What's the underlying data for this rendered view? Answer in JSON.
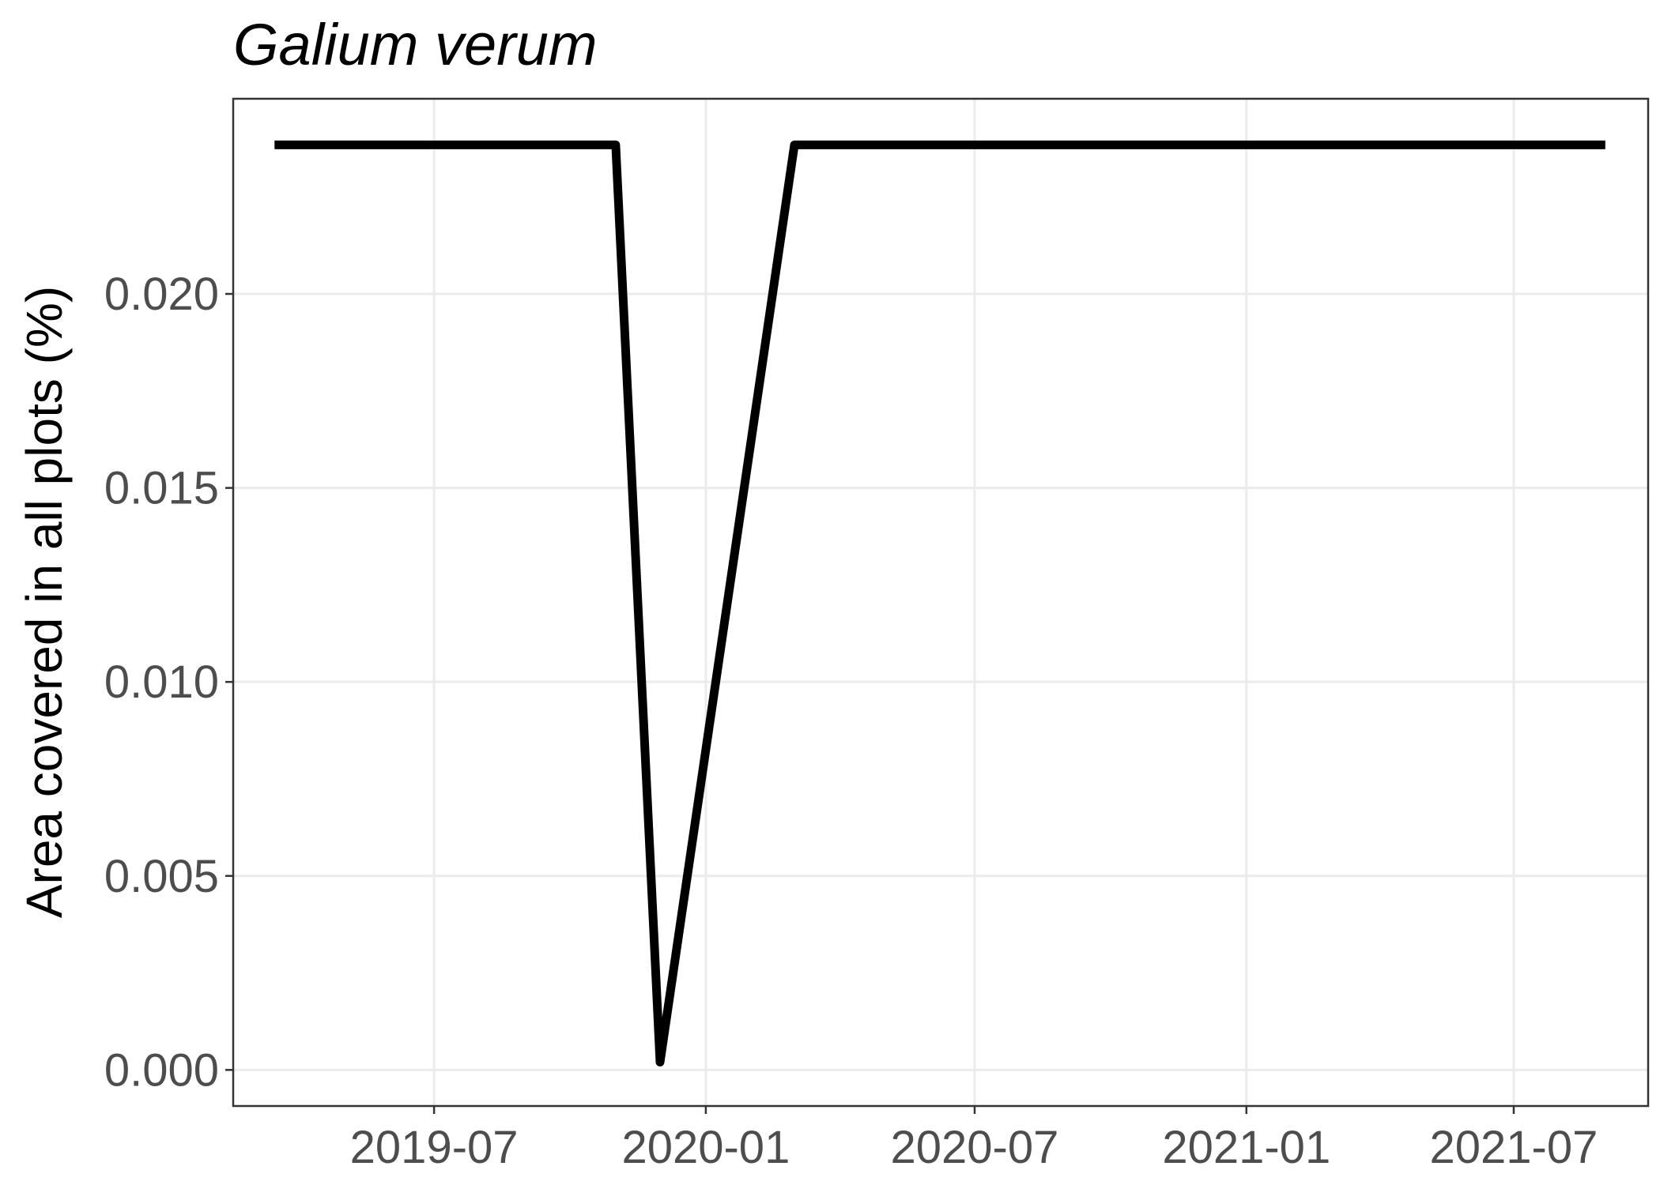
{
  "chart_data": {
    "type": "line",
    "title": "Galium verum",
    "xlabel": "",
    "ylabel": "Area covered in all plots (%)",
    "x_ticks": [
      "2019-07",
      "2020-01",
      "2020-07",
      "2021-01",
      "2021-07"
    ],
    "y_ticks": [
      "0.000",
      "0.005",
      "0.010",
      "0.015",
      "0.020"
    ],
    "ylim": [
      -0.00093,
      0.02503
    ],
    "xlim": [
      "2019-02-15",
      "2021-09-30"
    ],
    "grid": true,
    "legend": "none",
    "series": [
      {
        "line_color": "#000000",
        "points": [
          {
            "x": "2019-03-15",
            "y": 0.02384
          },
          {
            "x": "2019-11-01",
            "y": 0.02384
          },
          {
            "x": "2019-12-01",
            "y": 0.0002
          },
          {
            "x": "2020-03-01",
            "y": 0.02384
          },
          {
            "x": "2021-09-01",
            "y": 0.02384
          }
        ]
      }
    ]
  }
}
